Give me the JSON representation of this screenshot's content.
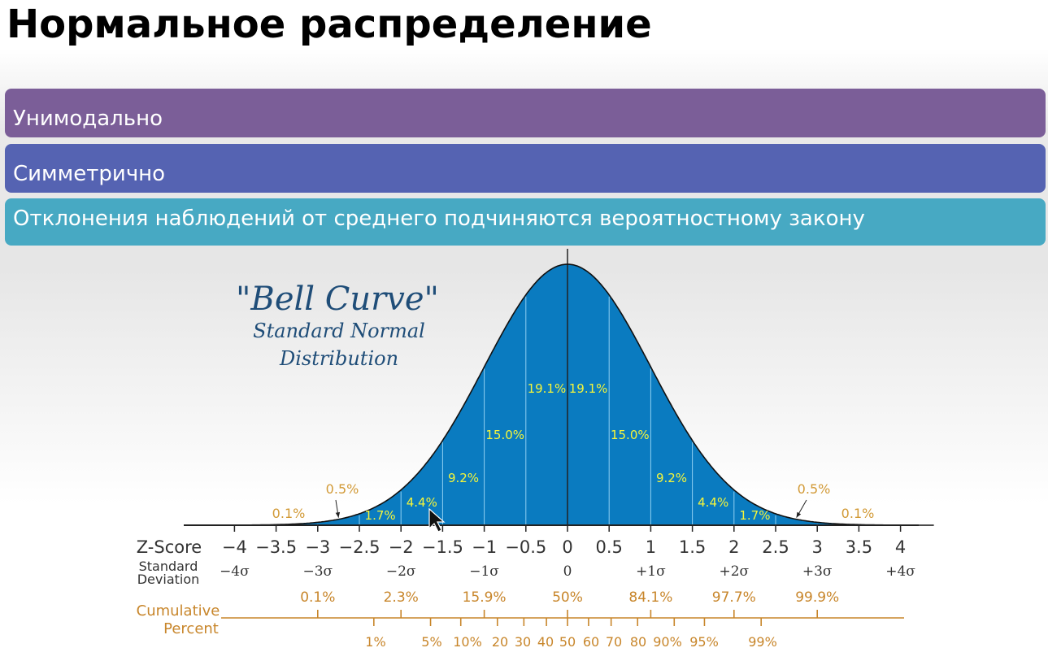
{
  "slide": {
    "title": "Нормальное распределение",
    "points": [
      "Унимодально",
      "Симметрично",
      "Отклонения наблюдений от среднего подчиняются вероятностному  закону"
    ]
  },
  "colors": {
    "band1": "#7b5e98",
    "band2": "#5563b2",
    "band3": "#47a9c3",
    "curve_fill": "#0a7bc0",
    "percent_label": "#f5f53a",
    "tail_label": "#d29a37",
    "caption": "#1f4d78",
    "cumulative": "#c8862b"
  },
  "chart_data": {
    "type": "area",
    "title": "\"Bell Curve\"",
    "subtitle_line1": "Standard Normal",
    "subtitle_line2": "Distribution",
    "xlim": [
      -4,
      4
    ],
    "z_score_label": "Z-Score",
    "z_ticks": [
      "−4",
      "−3.5",
      "−3",
      "−2.5",
      "−2",
      "−1.5",
      "−1",
      "−0.5",
      "0",
      "0.5",
      "1",
      "1.5",
      "2",
      "2.5",
      "3",
      "3.5",
      "4"
    ],
    "z_values": [
      -4,
      -3.5,
      -3,
      -2.5,
      -2,
      -1.5,
      -1,
      -0.5,
      0,
      0.5,
      1,
      1.5,
      2,
      2.5,
      3,
      3.5,
      4
    ],
    "sd_label_line1": "Standard",
    "sd_label_line2": "Deviation",
    "sd_ticks": [
      {
        "z": -4,
        "label": "−4σ"
      },
      {
        "z": -3,
        "label": "−3σ"
      },
      {
        "z": -2,
        "label": "−2σ"
      },
      {
        "z": -1,
        "label": "−1σ"
      },
      {
        "z": 0,
        "label": "0"
      },
      {
        "z": 1,
        "label": "+1σ"
      },
      {
        "z": 2,
        "label": "+2σ"
      },
      {
        "z": 3,
        "label": "+3σ"
      },
      {
        "z": 4,
        "label": "+4σ"
      }
    ],
    "segment_percents": [
      {
        "from": -0.5,
        "to": 0,
        "label": "19.1%"
      },
      {
        "from": 0,
        "to": 0.5,
        "label": "19.1%"
      },
      {
        "from": -1,
        "to": -0.5,
        "label": "15.0%"
      },
      {
        "from": 0.5,
        "to": 1,
        "label": "15.0%"
      },
      {
        "from": -1.5,
        "to": -1,
        "label": "9.2%"
      },
      {
        "from": 1,
        "to": 1.5,
        "label": "9.2%"
      },
      {
        "from": -2,
        "to": -1.5,
        "label": "4.4%"
      },
      {
        "from": 1.5,
        "to": 2,
        "label": "4.4%"
      },
      {
        "from": -2.5,
        "to": -2,
        "label": "1.7%"
      },
      {
        "from": 2,
        "to": 2.5,
        "label": "1.7%"
      }
    ],
    "tail_percents": [
      {
        "z": -3.2,
        "label": "0.1%"
      },
      {
        "z": -2.75,
        "label": "0.5%"
      },
      {
        "z": 2.75,
        "label": "0.5%"
      },
      {
        "z": 3.2,
        "label": "0.1%"
      }
    ],
    "cumulative_label_line1": "Cumulative",
    "cumulative_label_line2": "Percent",
    "cumulative_sd": [
      {
        "z": -3,
        "label": "0.1%"
      },
      {
        "z": -2,
        "label": "2.3%"
      },
      {
        "z": -1,
        "label": "15.9%"
      },
      {
        "z": 0,
        "label": "50%"
      },
      {
        "z": 1,
        "label": "84.1%"
      },
      {
        "z": 2,
        "label": "97.7%"
      },
      {
        "z": 3,
        "label": "99.9%"
      }
    ],
    "percentiles": [
      {
        "z": -2.326,
        "label": "1%"
      },
      {
        "z": -1.645,
        "label": "5%"
      },
      {
        "z": -1.282,
        "label": "10%"
      },
      {
        "z": -0.842,
        "label": "20"
      },
      {
        "z": -0.524,
        "label": "30"
      },
      {
        "z": -0.253,
        "label": "40"
      },
      {
        "z": 0,
        "label": "50"
      },
      {
        "z": 0.253,
        "label": "60"
      },
      {
        "z": 0.524,
        "label": "70"
      },
      {
        "z": 0.842,
        "label": "80"
      },
      {
        "z": 1.282,
        "label": "90%"
      },
      {
        "z": 1.645,
        "label": "95%"
      },
      {
        "z": 2.326,
        "label": "99%"
      }
    ]
  }
}
